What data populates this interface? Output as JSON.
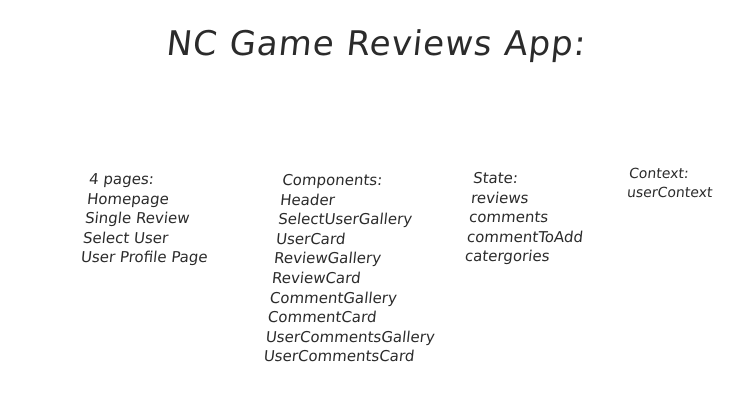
{
  "title": "NC Game Reviews App:",
  "pages": {
    "heading": "4 pages:",
    "items": [
      "Homepage",
      "Single Review",
      "Select User",
      "User Profile Page"
    ]
  },
  "components": {
    "heading": "Components:",
    "items": [
      "Header",
      "SelectUserGallery",
      "UserCard",
      "ReviewGallery",
      "ReviewCard",
      "CommentGallery",
      "CommentCard",
      "UserCommentsGallery",
      "UserCommentsCard"
    ]
  },
  "state": {
    "heading": "State:",
    "items": [
      "reviews",
      "comments",
      "commentToAdd",
      "catergories"
    ]
  },
  "context": {
    "heading": "Context:",
    "items": [
      "userContext"
    ]
  }
}
